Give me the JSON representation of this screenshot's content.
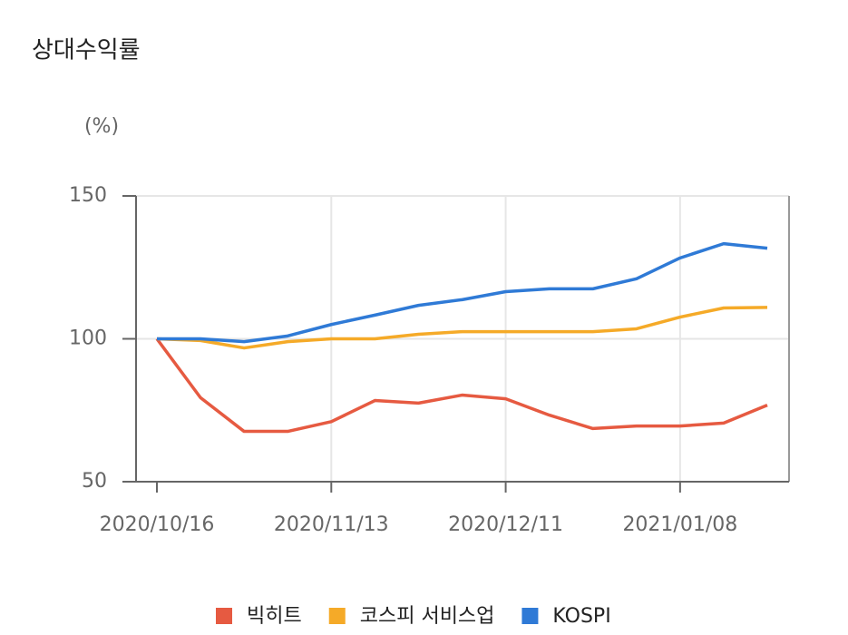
{
  "chart_data": {
    "type": "line",
    "title": "상대수익률",
    "y_label": "(%)",
    "categories": [
      "2020/10/16",
      null,
      null,
      null,
      "2020/11/13",
      null,
      null,
      null,
      "2020/12/11",
      null,
      null,
      null,
      "2021/01/08",
      null,
      null
    ],
    "series": [
      {
        "name": "빅히트",
        "color": "#e65a41",
        "values": [
          100,
          79.4,
          67.6,
          67.6,
          71,
          78.4,
          77.5,
          80.3,
          79,
          73.3,
          68.6,
          69.5,
          69.5,
          70.5,
          76.8
        ]
      },
      {
        "name": "코스피 서비스업",
        "color": "#f5aa28",
        "values": [
          100,
          99.4,
          96.8,
          99,
          100,
          100,
          101.6,
          102.5,
          102.5,
          102.5,
          102.5,
          103.5,
          107.6,
          110.8,
          111
        ]
      },
      {
        "name": "KOSPI",
        "color": "#2f7ad6",
        "values": [
          100,
          100,
          99,
          101,
          105,
          108.3,
          111.7,
          113.7,
          116.5,
          117.5,
          117.5,
          121,
          128.3,
          133.3,
          131.7
        ]
      }
    ],
    "ylim": [
      50,
      150
    ],
    "yticks": [
      50,
      100,
      150
    ],
    "grid": true
  }
}
